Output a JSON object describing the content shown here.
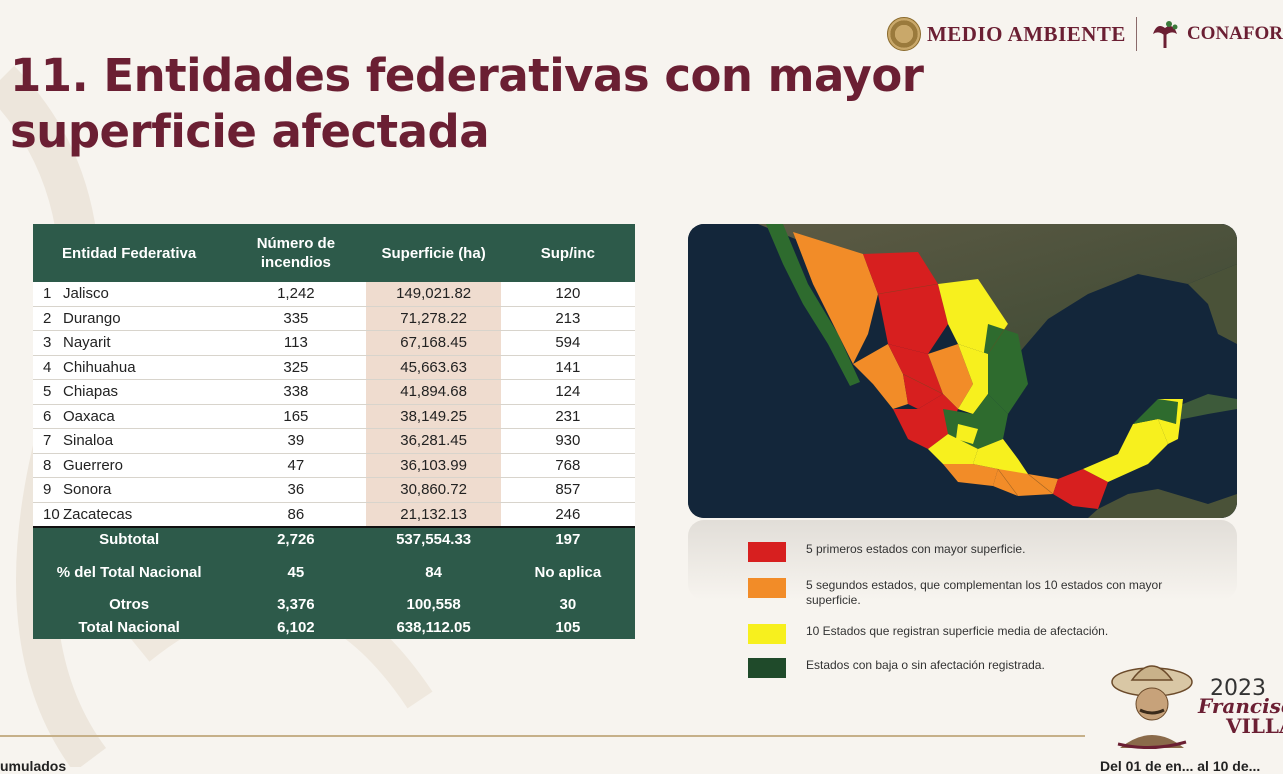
{
  "header": {
    "logo_medio_ambiente": "MEDIO AMBIENTE",
    "logo_conafor": "CONAFOR"
  },
  "title": "11. Entidades federativas con mayor superficie afectada",
  "table": {
    "headers": [
      "Entidad Federativa",
      "Número de incendios",
      "Superficie (ha)",
      "Sup/inc"
    ],
    "rows": [
      {
        "rank": "1",
        "name": "Jalisco",
        "fires": "1,242",
        "area": "149,021.82",
        "ratio": "120"
      },
      {
        "rank": "2",
        "name": "Durango",
        "fires": "335",
        "area": "71,278.22",
        "ratio": "213"
      },
      {
        "rank": "3",
        "name": "Nayarit",
        "fires": "113",
        "area": "67,168.45",
        "ratio": "594"
      },
      {
        "rank": "4",
        "name": "Chihuahua",
        "fires": "325",
        "area": "45,663.63",
        "ratio": "141"
      },
      {
        "rank": "5",
        "name": "Chiapas",
        "fires": "338",
        "area": "41,894.68",
        "ratio": "124"
      },
      {
        "rank": "6",
        "name": "Oaxaca",
        "fires": "165",
        "area": "38,149.25",
        "ratio": "231"
      },
      {
        "rank": "7",
        "name": "Sinaloa",
        "fires": "39",
        "area": "36,281.45",
        "ratio": "930"
      },
      {
        "rank": "8",
        "name": "Guerrero",
        "fires": "47",
        "area": "36,103.99",
        "ratio": "768"
      },
      {
        "rank": "9",
        "name": "Sonora",
        "fires": "36",
        "area": "30,860.72",
        "ratio": "857"
      },
      {
        "rank": "10",
        "name": "Zacatecas",
        "fires": "86",
        "area": "21,132.13",
        "ratio": "246"
      }
    ],
    "footer": [
      {
        "label": "Subtotal",
        "fires": "2,726",
        "area": "537,554.33",
        "ratio": "197"
      },
      {
        "label": "% del Total Nacional",
        "fires": "45",
        "area": "84",
        "ratio": "No aplica"
      },
      {
        "label": "Otros",
        "fires": "3,376",
        "area": "100,558",
        "ratio": "30"
      },
      {
        "label": "Total Nacional",
        "fires": "6,102",
        "area": "638,112.05",
        "ratio": "105"
      }
    ]
  },
  "legend": [
    {
      "color": "#d71f1f",
      "text": "5 primeros estados con mayor superficie."
    },
    {
      "color": "#f28c28",
      "text": "5 segundos estados, que complementan los 10 estados con mayor superficie."
    },
    {
      "color": "#f7f01e",
      "text": "10 Estados que registran superficie media de afectación."
    },
    {
      "color": "#2e6b2e",
      "text": "Estados con baja o sin afectación registrada."
    }
  ],
  "badge": {
    "year": "2023",
    "name_line1": "Francisco",
    "name_line2": "VILLA"
  },
  "bottom": {
    "left_text": "umulados",
    "right_text": "Del 01 de en... al 10 de..."
  }
}
